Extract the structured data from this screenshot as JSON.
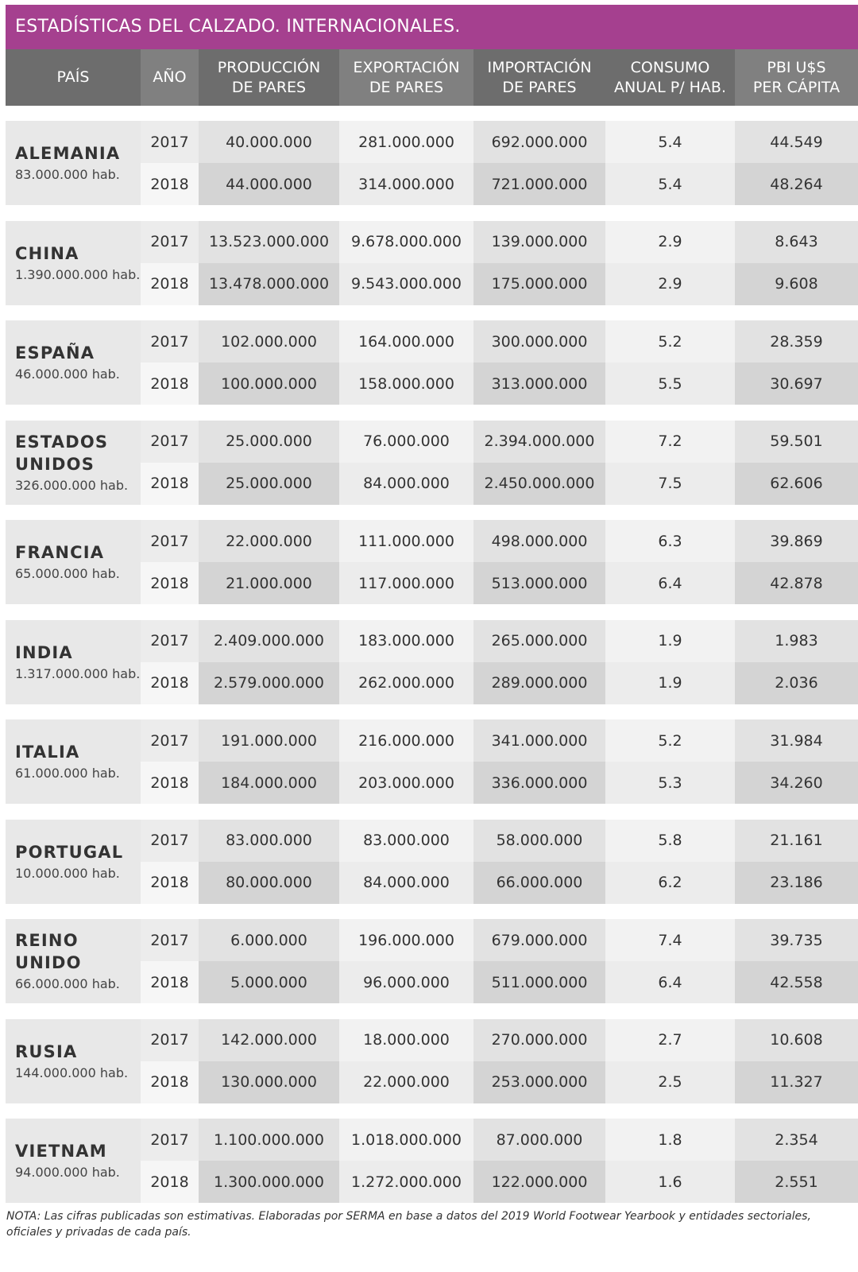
{
  "title": "ESTADÍSTICAS DEL CALZADO. INTERNACIONALES.",
  "headers": [
    "PAÍS",
    "AÑO",
    "PRODUCCIÓN\nDE PARES",
    "EXPORTACIÓN\nDE PARES",
    "IMPORTACIÓN\nDE PARES",
    "CONSUMO\nANUAL P/ HAB.",
    "PBI U$S\nPER CÁPITA"
  ],
  "chart_data": {
    "type": "table",
    "columns": [
      "PAÍS",
      "AÑO",
      "PRODUCCIÓN DE PARES",
      "EXPORTACIÓN DE PARES",
      "IMPORTACIÓN DE PARES",
      "CONSUMO ANUAL P/ HAB.",
      "PBI U$S PER CÁPITA"
    ],
    "countries": [
      {
        "name": "ALEMANIA",
        "population": "83.000.000 hab.",
        "rows": [
          {
            "year": "2017",
            "production": "40.000.000",
            "export": "281.000.000",
            "import": "692.000.000",
            "consumption": "5.4",
            "gdp": "44.549"
          },
          {
            "year": "2018",
            "production": "44.000.000",
            "export": "314.000.000",
            "import": "721.000.000",
            "consumption": "5.4",
            "gdp": "48.264"
          }
        ]
      },
      {
        "name": "CHINA",
        "population": "1.390.000.000 hab.",
        "rows": [
          {
            "year": "2017",
            "production": "13.523.000.000",
            "export": "9.678.000.000",
            "import": "139.000.000",
            "consumption": "2.9",
            "gdp": "8.643"
          },
          {
            "year": "2018",
            "production": "13.478.000.000",
            "export": "9.543.000.000",
            "import": "175.000.000",
            "consumption": "2.9",
            "gdp": "9.608"
          }
        ]
      },
      {
        "name": "ESPAÑA",
        "population": "46.000.000 hab.",
        "rows": [
          {
            "year": "2017",
            "production": "102.000.000",
            "export": "164.000.000",
            "import": "300.000.000",
            "consumption": "5.2",
            "gdp": "28.359"
          },
          {
            "year": "2018",
            "production": "100.000.000",
            "export": "158.000.000",
            "import": "313.000.000",
            "consumption": "5.5",
            "gdp": "30.697"
          }
        ]
      },
      {
        "name": "ESTADOS\nUNIDOS",
        "population": "326.000.000 hab.",
        "rows": [
          {
            "year": "2017",
            "production": "25.000.000",
            "export": "76.000.000",
            "import": "2.394.000.000",
            "consumption": "7.2",
            "gdp": "59.501"
          },
          {
            "year": "2018",
            "production": "25.000.000",
            "export": "84.000.000",
            "import": "2.450.000.000",
            "consumption": "7.5",
            "gdp": "62.606"
          }
        ]
      },
      {
        "name": "FRANCIA",
        "population": "65.000.000 hab.",
        "rows": [
          {
            "year": "2017",
            "production": "22.000.000",
            "export": "111.000.000",
            "import": "498.000.000",
            "consumption": "6.3",
            "gdp": "39.869"
          },
          {
            "year": "2018",
            "production": "21.000.000",
            "export": "117.000.000",
            "import": "513.000.000",
            "consumption": "6.4",
            "gdp": "42.878"
          }
        ]
      },
      {
        "name": "INDIA",
        "population": "1.317.000.000 hab.",
        "rows": [
          {
            "year": "2017",
            "production": "2.409.000.000",
            "export": "183.000.000",
            "import": "265.000.000",
            "consumption": "1.9",
            "gdp": "1.983"
          },
          {
            "year": "2018",
            "production": "2.579.000.000",
            "export": "262.000.000",
            "import": "289.000.000",
            "consumption": "1.9",
            "gdp": "2.036"
          }
        ]
      },
      {
        "name": "ITALIA",
        "population": "61.000.000 hab.",
        "rows": [
          {
            "year": "2017",
            "production": "191.000.000",
            "export": "216.000.000",
            "import": "341.000.000",
            "consumption": "5.2",
            "gdp": "31.984"
          },
          {
            "year": "2018",
            "production": "184.000.000",
            "export": "203.000.000",
            "import": "336.000.000",
            "consumption": "5.3",
            "gdp": "34.260"
          }
        ]
      },
      {
        "name": "PORTUGAL",
        "population": "10.000.000 hab.",
        "rows": [
          {
            "year": "2017",
            "production": "83.000.000",
            "export": "83.000.000",
            "import": "58.000.000",
            "consumption": "5.8",
            "gdp": "21.161"
          },
          {
            "year": "2018",
            "production": "80.000.000",
            "export": "84.000.000",
            "import": "66.000.000",
            "consumption": "6.2",
            "gdp": "23.186"
          }
        ]
      },
      {
        "name": "REINO\nUNIDO",
        "population": "66.000.000 hab.",
        "rows": [
          {
            "year": "2017",
            "production": "6.000.000",
            "export": "196.000.000",
            "import": "679.000.000",
            "consumption": "7.4",
            "gdp": "39.735"
          },
          {
            "year": "2018",
            "production": "5.000.000",
            "export": "96.000.000",
            "import": "511.000.000",
            "consumption": "6.4",
            "gdp": "42.558"
          }
        ]
      },
      {
        "name": "RUSIA",
        "population": "144.000.000 hab.",
        "rows": [
          {
            "year": "2017",
            "production": "142.000.000",
            "export": "18.000.000",
            "import": "270.000.000",
            "consumption": "2.7",
            "gdp": "10.608"
          },
          {
            "year": "2018",
            "production": "130.000.000",
            "export": "22.000.000",
            "import": "253.000.000",
            "consumption": "2.5",
            "gdp": "11.327"
          }
        ]
      },
      {
        "name": "VIETNAM",
        "population": "94.000.000 hab.",
        "rows": [
          {
            "year": "2017",
            "production": "1.100.000.000",
            "export": "1.018.000.000",
            "import": "87.000.000",
            "consumption": "1.8",
            "gdp": "2.354"
          },
          {
            "year": "2018",
            "production": "1.300.000.000",
            "export": "1.272.000.000",
            "import": "122.000.000",
            "consumption": "1.6",
            "gdp": "2.551"
          }
        ]
      }
    ]
  },
  "note": "NOTA: Las cifras publicadas son estimativas. Elaboradas por SERMA en base a datos del 2019 World Footwear Yearbook y entidades sectoriales, oficiales y privadas de cada país."
}
